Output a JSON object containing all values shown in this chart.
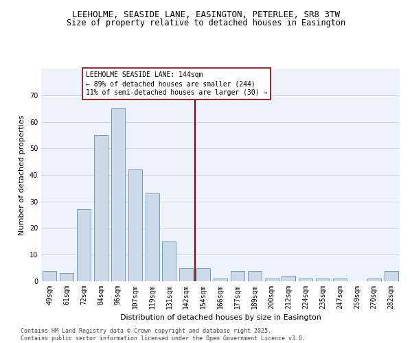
{
  "title_line1": "LEEHOLME, SEASIDE LANE, EASINGTON, PETERLEE, SR8 3TW",
  "title_line2": "Size of property relative to detached houses in Easington",
  "xlabel": "Distribution of detached houses by size in Easington",
  "ylabel": "Number of detached properties",
  "bin_labels": [
    "49sqm",
    "61sqm",
    "72sqm",
    "84sqm",
    "96sqm",
    "107sqm",
    "119sqm",
    "131sqm",
    "142sqm",
    "154sqm",
    "166sqm",
    "177sqm",
    "189sqm",
    "200sqm",
    "212sqm",
    "224sqm",
    "235sqm",
    "247sqm",
    "259sqm",
    "270sqm",
    "282sqm"
  ],
  "bar_heights": [
    4,
    3,
    27,
    55,
    65,
    42,
    33,
    15,
    5,
    5,
    1,
    4,
    4,
    1,
    2,
    1,
    1,
    1,
    0,
    1,
    4
  ],
  "bar_color": "#ccd9e8",
  "bar_edge_color": "#7799bb",
  "vline_x": 8.5,
  "vline_color": "#8b0000",
  "annotation_text": "LEEHOLME SEASIDE LANE: 144sqm\n← 89% of detached houses are smaller (244)\n11% of semi-detached houses are larger (30) →",
  "annotation_box_color": "#ffffff",
  "annotation_box_edge_color": "#8b0000",
  "ylim": [
    0,
    80
  ],
  "yticks": [
    0,
    10,
    20,
    30,
    40,
    50,
    60,
    70,
    80
  ],
  "grid_color": "#d0d8e8",
  "background_color": "#eef2fa",
  "footer_text": "Contains HM Land Registry data © Crown copyright and database right 2025.\nContains public sector information licensed under the Open Government Licence v3.0.",
  "title_fontsize": 9,
  "subtitle_fontsize": 8.5,
  "axis_label_fontsize": 8,
  "tick_fontsize": 7,
  "annotation_fontsize": 7,
  "footer_fontsize": 6
}
